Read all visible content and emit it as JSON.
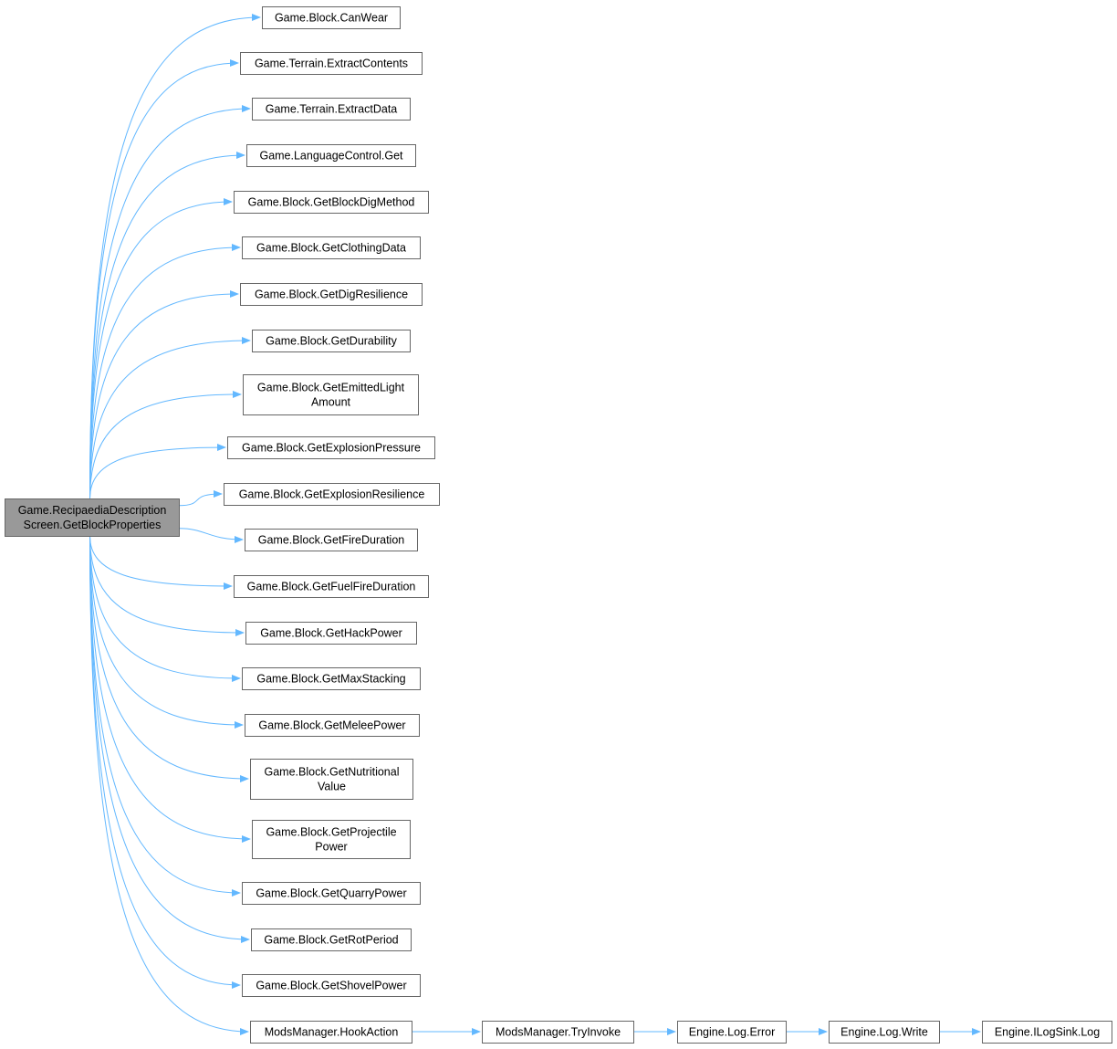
{
  "diagram": {
    "type": "call-graph",
    "edge_color": "#63b8ff",
    "root": {
      "id": "root",
      "lines": [
        "Game.RecipaediaDescription",
        "Screen.GetBlockProperties"
      ]
    },
    "callees": [
      {
        "id": "canwear",
        "lines": [
          "Game.Block.CanWear"
        ]
      },
      {
        "id": "extractcontents",
        "lines": [
          "Game.Terrain.ExtractContents"
        ]
      },
      {
        "id": "extractdata",
        "lines": [
          "Game.Terrain.ExtractData"
        ]
      },
      {
        "id": "langget",
        "lines": [
          "Game.LanguageControl.Get"
        ]
      },
      {
        "id": "digmethod",
        "lines": [
          "Game.Block.GetBlockDigMethod"
        ]
      },
      {
        "id": "clothing",
        "lines": [
          "Game.Block.GetClothingData"
        ]
      },
      {
        "id": "digres",
        "lines": [
          "Game.Block.GetDigResilience"
        ]
      },
      {
        "id": "durability",
        "lines": [
          "Game.Block.GetDurability"
        ]
      },
      {
        "id": "emitted",
        "lines": [
          "Game.Block.GetEmittedLight",
          "Amount"
        ]
      },
      {
        "id": "explpressure",
        "lines": [
          "Game.Block.GetExplosionPressure"
        ]
      },
      {
        "id": "explres",
        "lines": [
          "Game.Block.GetExplosionResilience"
        ]
      },
      {
        "id": "fireduration",
        "lines": [
          "Game.Block.GetFireDuration"
        ]
      },
      {
        "id": "fuelfire",
        "lines": [
          "Game.Block.GetFuelFireDuration"
        ]
      },
      {
        "id": "hackpower",
        "lines": [
          "Game.Block.GetHackPower"
        ]
      },
      {
        "id": "maxstack",
        "lines": [
          "Game.Block.GetMaxStacking"
        ]
      },
      {
        "id": "melee",
        "lines": [
          "Game.Block.GetMeleePower"
        ]
      },
      {
        "id": "nutrition",
        "lines": [
          "Game.Block.GetNutritional",
          "Value"
        ]
      },
      {
        "id": "projectile",
        "lines": [
          "Game.Block.GetProjectile",
          "Power"
        ]
      },
      {
        "id": "quarry",
        "lines": [
          "Game.Block.GetQuarryPower"
        ]
      },
      {
        "id": "rot",
        "lines": [
          "Game.Block.GetRotPeriod"
        ]
      },
      {
        "id": "shovel",
        "lines": [
          "Game.Block.GetShovelPower"
        ]
      },
      {
        "id": "hookaction",
        "lines": [
          "ModsManager.HookAction"
        ]
      }
    ],
    "chain": [
      {
        "id": "tryinvoke",
        "lines": [
          "ModsManager.TryInvoke"
        ]
      },
      {
        "id": "logerror",
        "lines": [
          "Engine.Log.Error"
        ]
      },
      {
        "id": "logwrite",
        "lines": [
          "Engine.Log.Write"
        ]
      },
      {
        "id": "ilogsink",
        "lines": [
          "Engine.ILogSink.Log"
        ]
      }
    ]
  }
}
